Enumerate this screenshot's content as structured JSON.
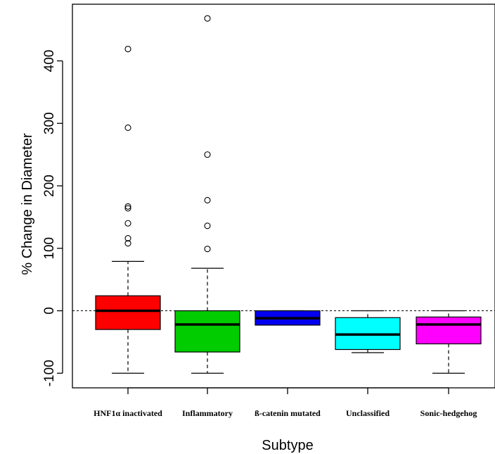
{
  "chart_data": {
    "type": "box",
    "title": "",
    "xlabel": "Subtype",
    "ylabel": "% Change in Diameter",
    "ylim": [
      -122,
      475
    ],
    "yticks": [
      -100,
      0,
      100,
      200,
      300,
      400
    ],
    "ytick_labels": [
      "-100",
      "0",
      "100",
      "200",
      "300",
      "400"
    ],
    "reference_line": 0,
    "grid": false,
    "categories": [
      "HNF1α inactivated",
      "Inflammatory",
      "ß-catenin mutated",
      "Unclassified",
      "Sonic-hedgehog"
    ],
    "boxes": [
      {
        "category": "HNF1α inactivated",
        "color": "#ff0000",
        "whisker_low": -100,
        "q1": -30,
        "median": 0,
        "q3": 24,
        "whisker_high": 79,
        "outliers": [
          108,
          116,
          140,
          164,
          167,
          293,
          419
        ]
      },
      {
        "category": "Inflammatory",
        "color": "#00cc00",
        "whisker_low": -100,
        "q1": -66,
        "median": -22,
        "q3": 0,
        "whisker_high": 68,
        "outliers": [
          99,
          136,
          177,
          250,
          468
        ]
      },
      {
        "category": "ß-catenin mutated",
        "color": "#0000ee",
        "whisker_low": -23,
        "q1": -23,
        "median": -12,
        "q3": 0,
        "whisker_high": 0,
        "outliers": []
      },
      {
        "category": "Unclassified",
        "color": "#00ffff",
        "whisker_low": -67,
        "q1": -62,
        "median": -38,
        "q3": -11,
        "whisker_high": 0,
        "outliers": []
      },
      {
        "category": "Sonic-hedgehog",
        "color": "#ff00ff",
        "whisker_low": -100,
        "q1": -53,
        "median": -22,
        "q3": -10,
        "whisker_high": 0,
        "outliers": []
      }
    ]
  }
}
